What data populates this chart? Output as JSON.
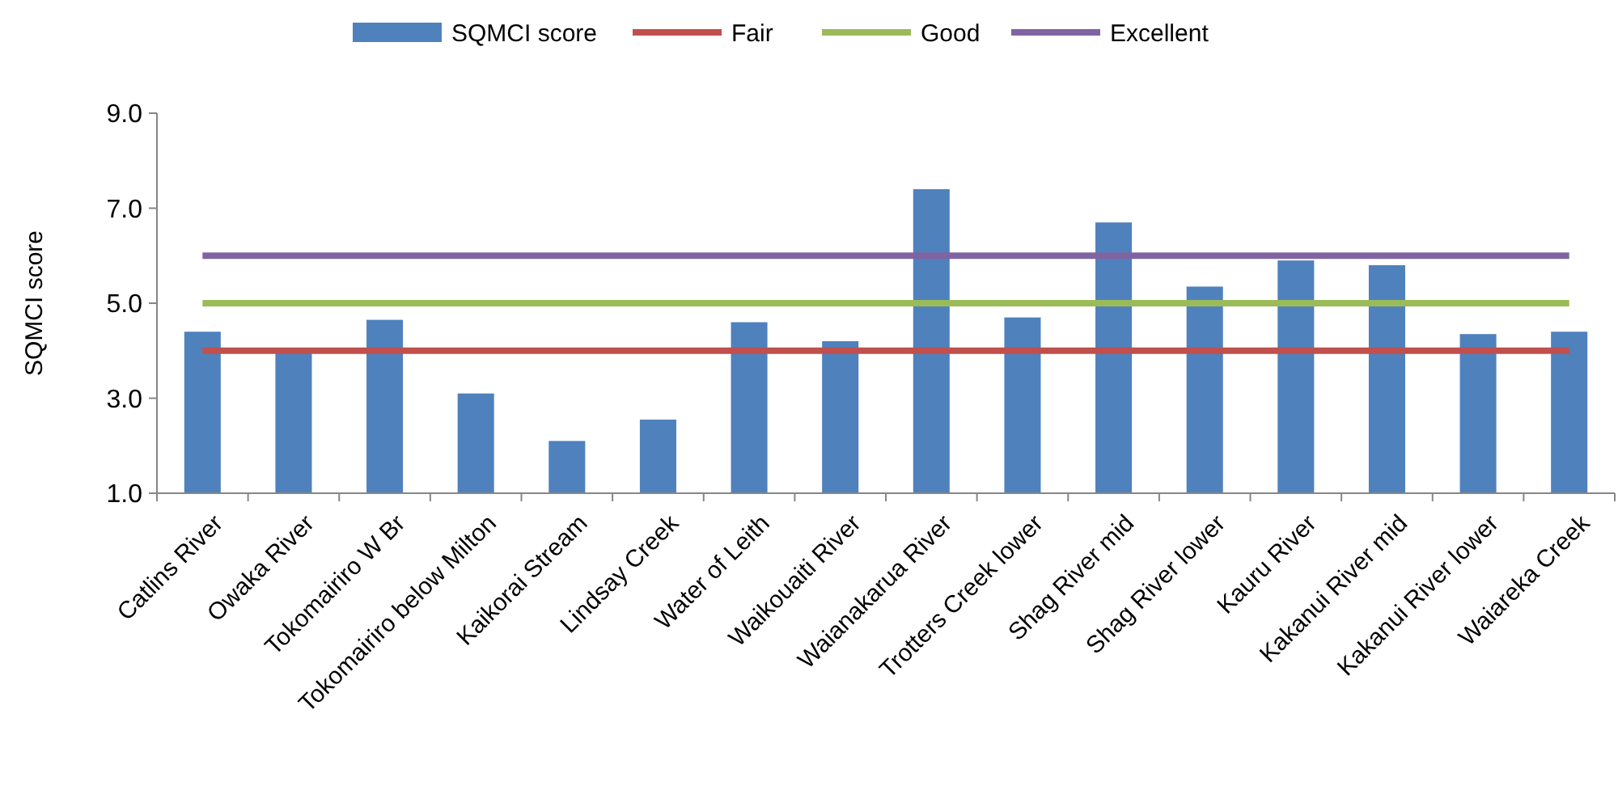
{
  "chart_data": {
    "type": "bar",
    "ylabel": "SQMCI score",
    "categories": [
      "Catlins River",
      "Owaka River",
      "Tokomairiro W Br",
      "Tokomairiro below Milton",
      "Kaikorai Stream",
      "Lindsay Creek",
      "Water of Leith",
      "Waikouaiti River",
      "Waianakarua River",
      "Trotters Creek lower",
      "Shag River mid",
      "Shag River lower",
      "Kauru River",
      "Kakanui River mid",
      "Kakanui River lower",
      "Waiareka Creek"
    ],
    "series": [
      {
        "name": "SQMCI score",
        "color": "#4f81bd",
        "values": [
          4.4,
          4.0,
          4.65,
          3.1,
          2.1,
          2.55,
          4.6,
          4.2,
          7.4,
          4.7,
          6.7,
          5.35,
          5.9,
          5.8,
          4.35,
          4.4
        ]
      },
      {
        "name": "Fair",
        "type": "line",
        "color": "#c0504d",
        "values": [
          4,
          4,
          4,
          4,
          4,
          4,
          4,
          4,
          4,
          4,
          4,
          4,
          4,
          4,
          4,
          4
        ]
      },
      {
        "name": "Good",
        "type": "line",
        "color": "#9bbb59",
        "values": [
          5,
          5,
          5,
          5,
          5,
          5,
          5,
          5,
          5,
          5,
          5,
          5,
          5,
          5,
          5,
          5
        ]
      },
      {
        "name": "Excellent",
        "type": "line",
        "color": "#8064a2",
        "values": [
          6,
          6,
          6,
          6,
          6,
          6,
          6,
          6,
          6,
          6,
          6,
          6,
          6,
          6,
          6,
          6
        ]
      }
    ],
    "ylim": [
      1,
      9
    ],
    "yticks": [
      {
        "value": 1,
        "label": "1.0"
      },
      {
        "value": 3,
        "label": "3.0"
      },
      {
        "value": 5,
        "label": "5.0"
      },
      {
        "value": 7,
        "label": "7.0"
      },
      {
        "value": 9,
        "label": "9.0"
      }
    ],
    "legend": "top",
    "marker": "none",
    "line_style": "solid"
  }
}
